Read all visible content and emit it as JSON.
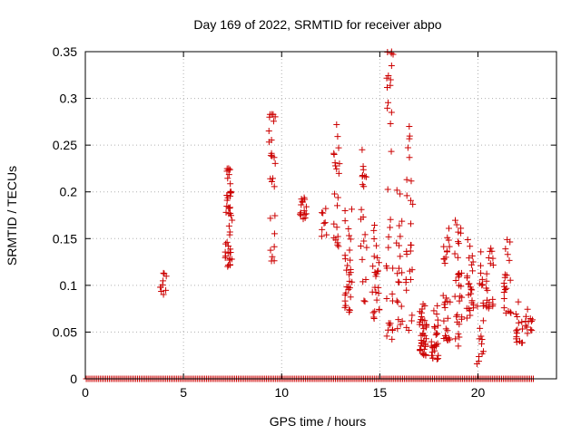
{
  "chart_data": {
    "type": "scatter",
    "title": "Day 169 of 2022, SRMTID for receiver abpo",
    "xlabel": "GPS time / hours",
    "ylabel": "SRMTID / TECUs",
    "xlim": [
      0,
      24
    ],
    "ylim": [
      0,
      0.35
    ],
    "xticks": [
      0,
      5,
      10,
      15,
      20
    ],
    "xtick_labels": [
      "0",
      "5",
      "10",
      "15",
      "20"
    ],
    "yticks": [
      0,
      0.05,
      0.1,
      0.15,
      0.2,
      0.25,
      0.3,
      0.35
    ],
    "ytick_labels": [
      "0",
      "0.05",
      "0.1",
      "0.15",
      "0.2",
      "0.25",
      "0.3",
      "0.35"
    ],
    "grid": true,
    "marker": "+",
    "series_color": "#cc0000",
    "zero_line_x_range": [
      0.05,
      22.9
    ],
    "zero_line_step": 0.09,
    "clusters": [
      {
        "x": 4.0,
        "ymin": 0.09,
        "ymax": 0.125,
        "n": 10
      },
      {
        "x": 7.3,
        "ymin": 0.12,
        "ymax": 0.225,
        "n": 45
      },
      {
        "x": 9.5,
        "ymin": 0.125,
        "ymax": 0.285,
        "n": 25
      },
      {
        "x": 11.1,
        "ymin": 0.17,
        "ymax": 0.21,
        "n": 15
      },
      {
        "x": 12.2,
        "ymin": 0.15,
        "ymax": 0.19,
        "n": 8
      },
      {
        "x": 12.8,
        "ymin": 0.14,
        "ymax": 0.275,
        "n": 20
      },
      {
        "x": 13.4,
        "ymin": 0.07,
        "ymax": 0.19,
        "n": 30
      },
      {
        "x": 14.2,
        "ymin": 0.08,
        "ymax": 0.245,
        "n": 20
      },
      {
        "x": 14.8,
        "ymin": 0.06,
        "ymax": 0.17,
        "n": 25
      },
      {
        "x": 15.5,
        "ymin": 0.04,
        "ymax": 0.35,
        "n": 30
      },
      {
        "x": 16.0,
        "ymin": 0.05,
        "ymax": 0.21,
        "n": 20
      },
      {
        "x": 16.5,
        "ymin": 0.05,
        "ymax": 0.27,
        "n": 25
      },
      {
        "x": 17.2,
        "ymin": 0.025,
        "ymax": 0.08,
        "n": 40
      },
      {
        "x": 17.8,
        "ymin": 0.02,
        "ymax": 0.085,
        "n": 25
      },
      {
        "x": 18.4,
        "ymin": 0.04,
        "ymax": 0.17,
        "n": 30
      },
      {
        "x": 19.0,
        "ymin": 0.035,
        "ymax": 0.17,
        "n": 30
      },
      {
        "x": 19.6,
        "ymin": 0.06,
        "ymax": 0.15,
        "n": 25
      },
      {
        "x": 20.1,
        "ymin": 0.015,
        "ymax": 0.14,
        "n": 20
      },
      {
        "x": 20.6,
        "ymin": 0.07,
        "ymax": 0.14,
        "n": 20
      },
      {
        "x": 21.5,
        "ymin": 0.07,
        "ymax": 0.15,
        "n": 20
      },
      {
        "x": 22.1,
        "ymin": 0.035,
        "ymax": 0.085,
        "n": 15
      },
      {
        "x": 22.6,
        "ymin": 0.045,
        "ymax": 0.075,
        "n": 12
      }
    ],
    "highlights": [
      {
        "x": 15.6,
        "y": 0.35
      },
      {
        "x": 15.6,
        "y": 0.335
      },
      {
        "x": 15.55,
        "y": 0.32
      },
      {
        "x": 15.6,
        "y": 0.285
      },
      {
        "x": 12.8,
        "y": 0.272
      },
      {
        "x": 9.5,
        "y": 0.283
      },
      {
        "x": 16.5,
        "y": 0.27
      },
      {
        "x": 14.1,
        "y": 0.245
      },
      {
        "x": 7.3,
        "y": 0.225
      },
      {
        "x": 19.95,
        "y": 0.016
      },
      {
        "x": 17.7,
        "y": 0.022
      },
      {
        "x": 19.0,
        "y": 0.035
      }
    ]
  }
}
